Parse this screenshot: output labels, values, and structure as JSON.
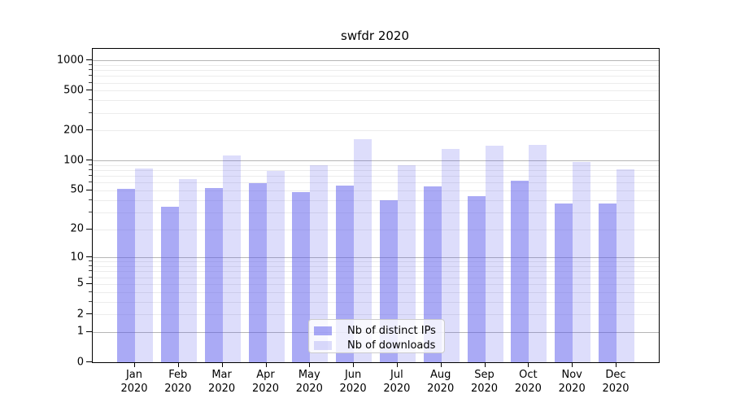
{
  "title": "swfdr 2020",
  "legend": {
    "items": [
      {
        "label": "Nb of distinct IPs"
      },
      {
        "label": "Nb of downloads"
      }
    ]
  },
  "chart_data": {
    "type": "bar",
    "title": "swfdr 2020",
    "categories": [
      "Jan 2020",
      "Feb 2020",
      "Mar 2020",
      "Apr 2020",
      "May 2020",
      "Jun 2020",
      "Jul 2020",
      "Aug 2020",
      "Sep 2020",
      "Oct 2020",
      "Nov 2020",
      "Dec 2020"
    ],
    "x_tick_months": [
      "Jan",
      "Feb",
      "Mar",
      "Apr",
      "May",
      "Jun",
      "Jul",
      "Aug",
      "Sep",
      "Oct",
      "Nov",
      "Dec"
    ],
    "x_tick_year": "2020",
    "series": [
      {
        "name": "Nb of distinct IPs",
        "color": "#aaaaf5",
        "rgba": "rgba(85,85,235,0.5)",
        "values": [
          52,
          34,
          53,
          59,
          48,
          56,
          40,
          55,
          44,
          63,
          37,
          37
        ]
      },
      {
        "name": "Nb of downloads",
        "color": "#d9d9f9",
        "rgba": "rgba(85,85,235,0.2)",
        "values": [
          84,
          65,
          113,
          79,
          90,
          165,
          89,
          130,
          140,
          143,
          97,
          81
        ]
      }
    ],
    "yscale": "log1p",
    "ylim": [
      0,
      1300
    ],
    "ytick_labels": [
      1000,
      500,
      200,
      100,
      50,
      20,
      10,
      5,
      2,
      1,
      0
    ],
    "ytick_major_gridlines": [
      1,
      10,
      100,
      1000
    ],
    "grid": true,
    "legend_position": "lower center"
  },
  "colors": {
    "bar_ips": "#aaaaf5",
    "bar_downloads": "#d9d9f9",
    "major_grid": "#b6b6b6",
    "minor_grid": "#ececec",
    "axis": "#000000",
    "text": "#000000"
  }
}
